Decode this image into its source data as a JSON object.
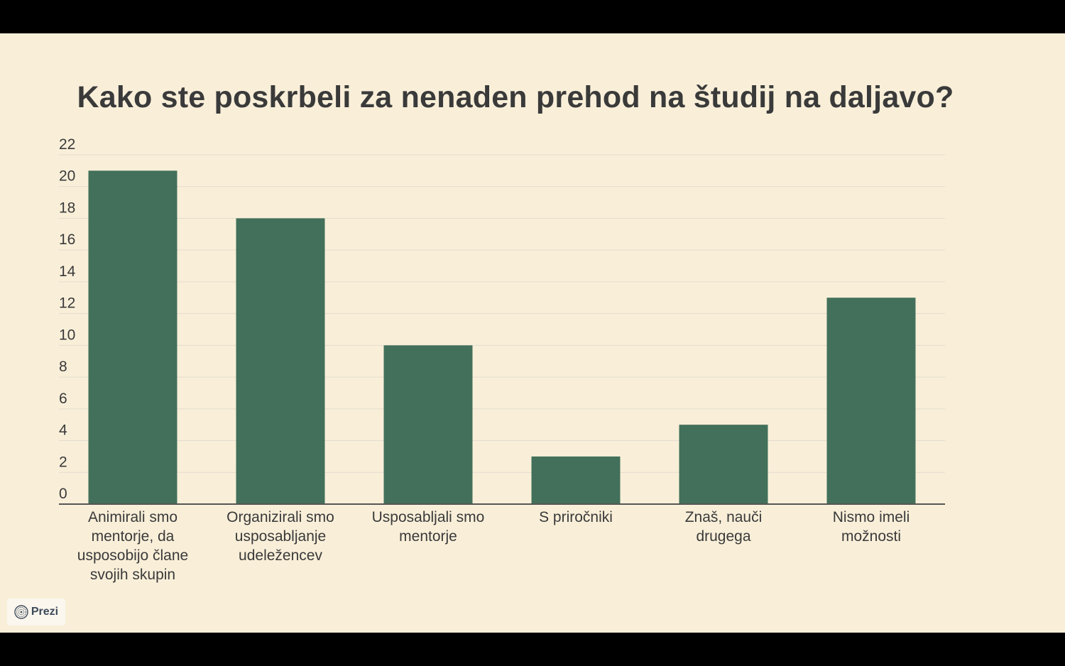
{
  "brand": {
    "name": "Prezi"
  },
  "colors": {
    "background": "#f9efd9",
    "bar": "#43705a",
    "axis": "#555555",
    "grid": "#e3dccd",
    "text": "#3a3a3a"
  },
  "chart_data": {
    "type": "bar",
    "title": "Kako ste poskrbeli za nenaden prehod na študij na daljavo?",
    "xlabel": "",
    "ylabel": "",
    "ylim": [
      0,
      22
    ],
    "yticks": [
      0,
      2,
      4,
      6,
      8,
      10,
      12,
      14,
      16,
      18,
      20,
      22
    ],
    "grid": true,
    "categories": [
      [
        "Animirali smo",
        "mentorje, da",
        "usposobijo člane",
        "svojih skupin"
      ],
      [
        "Organizirali smo",
        "usposabljanje",
        "udeležencev"
      ],
      [
        "Usposabljali smo",
        "mentorje"
      ],
      [
        "S priročniki"
      ],
      [
        "Znaš, nauči",
        "drugega"
      ],
      [
        "Nismo imeli",
        "možnosti"
      ]
    ],
    "values": [
      21,
      18,
      10,
      3,
      5,
      13
    ]
  }
}
